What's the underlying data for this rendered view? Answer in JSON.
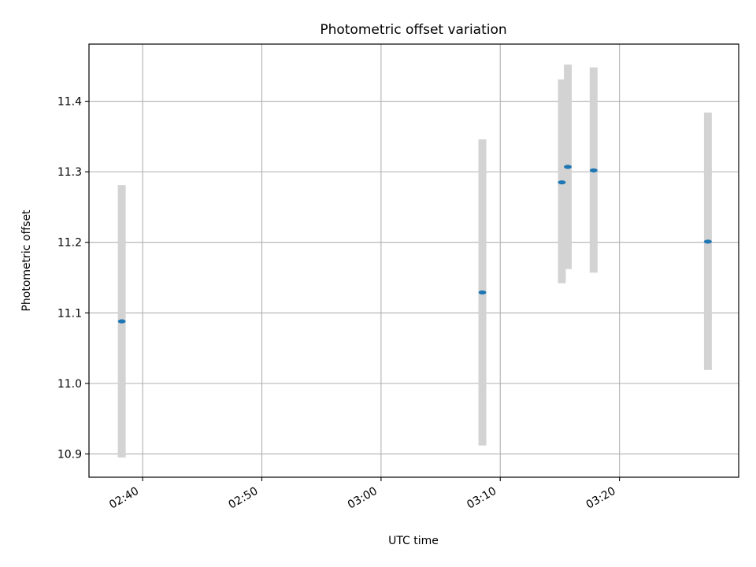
{
  "chart_data": {
    "type": "scatter",
    "title": "Photometric offset variation",
    "xlabel": "UTC time",
    "ylabel": "Photometric offset",
    "x_axis_type": "time",
    "xlim": [
      "02:35:30",
      "03:30:00"
    ],
    "ylim": [
      10.867,
      11.481
    ],
    "x_ticks": [
      "02:40",
      "02:50",
      "03:00",
      "03:10",
      "03:20"
    ],
    "y_ticks": [
      10.9,
      11.0,
      11.1,
      11.2,
      11.3,
      11.4
    ],
    "grid": true,
    "legend": "none",
    "colors": {
      "marker": "#1f77b4",
      "errorbar": "#d3d3d3",
      "grid": "#b0b0b0"
    },
    "points": [
      {
        "x": "02:38:15",
        "y": 11.088,
        "err_low": 10.895,
        "err_high": 11.281
      },
      {
        "x": "03:08:30",
        "y": 11.129,
        "err_low": 10.912,
        "err_high": 11.346
      },
      {
        "x": "03:15:10",
        "y": 11.285,
        "err_low": 11.142,
        "err_high": 11.431
      },
      {
        "x": "03:15:40",
        "y": 11.307,
        "err_low": 11.162,
        "err_high": 11.452
      },
      {
        "x": "03:17:50",
        "y": 11.302,
        "err_low": 11.157,
        "err_high": 11.448
      },
      {
        "x": "03:27:25",
        "y": 11.201,
        "err_low": 11.019,
        "err_high": 11.384
      }
    ]
  }
}
